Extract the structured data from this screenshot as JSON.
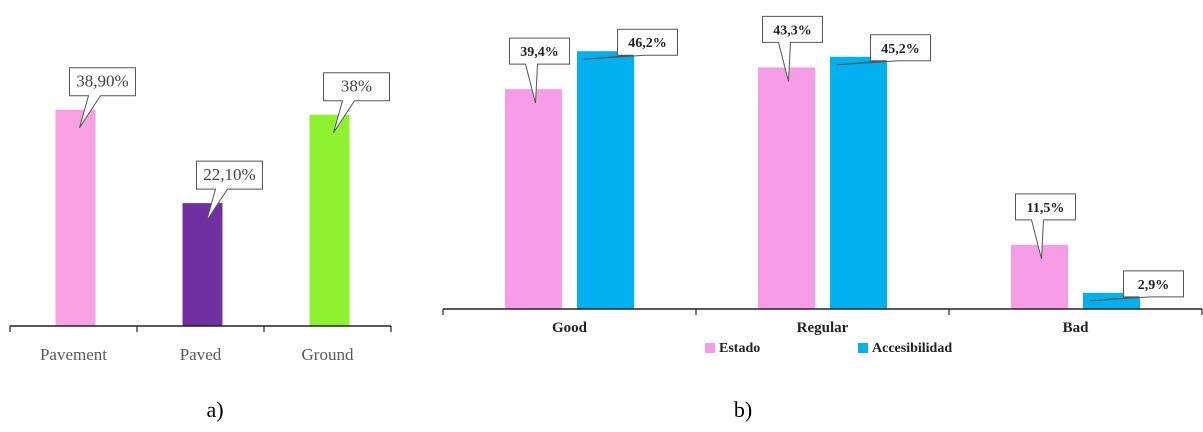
{
  "chart_data": [
    {
      "type": "bar",
      "caption": "a)",
      "categories": [
        "Pavement",
        "Paved",
        "Ground"
      ],
      "series": [
        {
          "values": [
            38.9,
            22.1,
            38
          ],
          "labels": [
            "38,90%",
            "22,10%",
            "38%"
          ]
        }
      ],
      "colors": [
        "#f7a1e3",
        "#7030a0",
        "#8ef231"
      ],
      "ylim": [
        0,
        50
      ],
      "grid": false,
      "xlabel": "",
      "ylabel": ""
    },
    {
      "type": "bar",
      "caption": "b)",
      "categories": [
        "Good",
        "Regular",
        "Bad"
      ],
      "series": [
        {
          "name": "Estado",
          "values": [
            39.4,
            43.3,
            11.5
          ],
          "labels": [
            "39,4%",
            "43,3%",
            "11,5%"
          ],
          "color": "#f79ce6"
        },
        {
          "name": "Accesibilidad",
          "values": [
            46.2,
            45.2,
            2.9
          ],
          "labels": [
            "46,2%",
            "45,2%",
            "2,9%"
          ],
          "color": "#00b0ef"
        }
      ],
      "ylim": [
        0,
        50
      ],
      "grid": false,
      "legend": "bottom",
      "xlabel": "",
      "ylabel": ""
    }
  ]
}
